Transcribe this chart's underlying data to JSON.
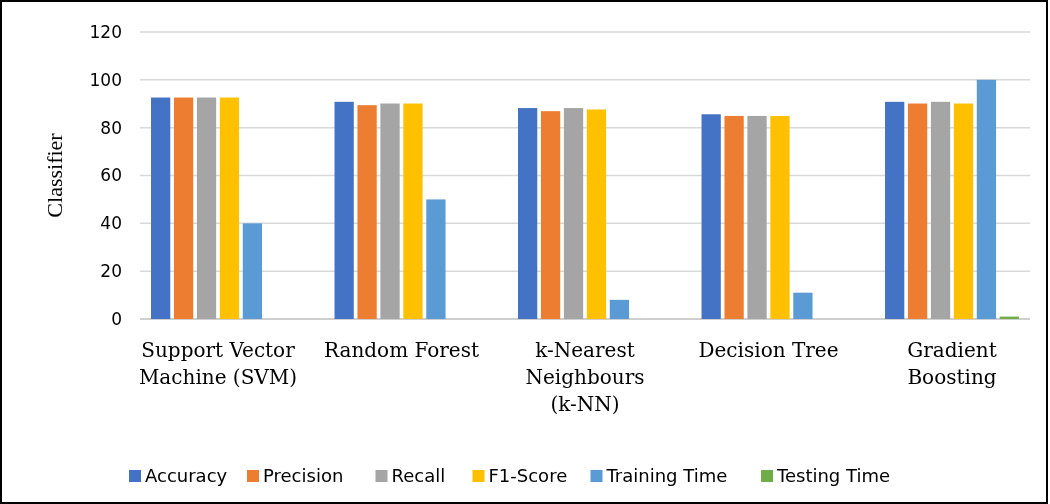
{
  "chart_data": {
    "type": "bar",
    "ylabel": "Classifier",
    "categories": [
      "Support Vector Machine (SVM)",
      "Random Forest",
      "k-Nearest Neighbours (k-NN)",
      "Decision Tree",
      "Gradient Boosting"
    ],
    "series": [
      {
        "name": "Accuracy",
        "color": "#4472c4",
        "values": [
          92.6,
          90.8,
          88.2,
          85.6,
          90.8
        ]
      },
      {
        "name": "Precision",
        "color": "#ed7d31",
        "values": [
          92.6,
          89.4,
          86.9,
          84.9,
          90.1
        ]
      },
      {
        "name": "Recall",
        "color": "#a5a5a5",
        "values": [
          92.6,
          90.1,
          88.2,
          84.9,
          90.8
        ]
      },
      {
        "name": "F1-Score",
        "color": "#ffc000",
        "values": [
          92.6,
          90.1,
          87.6,
          84.9,
          90.1
        ]
      },
      {
        "name": "Training Time",
        "color": "#5b9bd5",
        "values": [
          40,
          50,
          8,
          11,
          100
        ]
      },
      {
        "name": "Testing Time",
        "color": "#70ad47",
        "values": [
          0,
          0,
          0,
          0,
          1
        ]
      }
    ],
    "ylim": [
      0,
      120
    ],
    "yticks": [
      0,
      20,
      40,
      60,
      80,
      100,
      120
    ],
    "grid": "y",
    "legend": "bottom"
  }
}
